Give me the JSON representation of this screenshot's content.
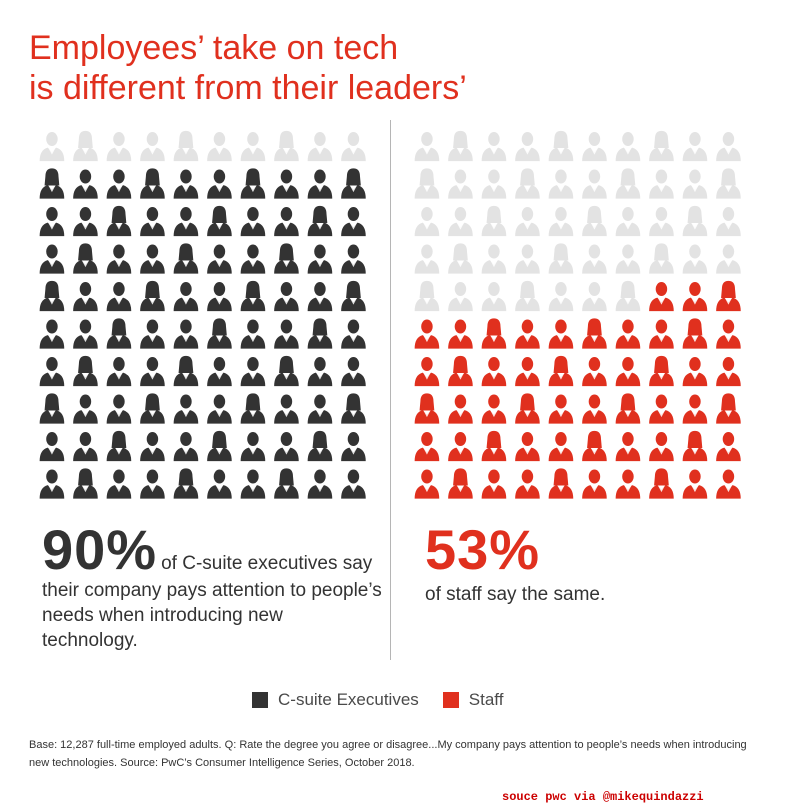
{
  "title_lines": [
    "Employees’ take on tech",
    "is different from their leaders’"
  ],
  "colors": {
    "c_suite": "#333333",
    "staff": "#e0301e",
    "empty": "#e3e3e3",
    "title": "#e0301e"
  },
  "chart_data": [
    {
      "type": "pictogram",
      "series": "C-suite Executives",
      "total": 100,
      "value": 90,
      "unit": "%",
      "icon": "person-icon"
    },
    {
      "type": "pictogram",
      "series": "Staff",
      "total": 100,
      "value": 53,
      "unit": "%",
      "icon": "person-icon"
    }
  ],
  "stats": {
    "c_suite": {
      "value": "90%",
      "text": "of C-suite executives say their company pays attention to people’s needs when introducing new technology."
    },
    "staff": {
      "value": "53%",
      "text": "of staff say the same."
    }
  },
  "legend": {
    "c_suite": "C-suite Executives",
    "staff": "Staff"
  },
  "footnote": "Base: 12,287 full-time employed adults. Q: Rate the degree you agree or disagree...My company pays attention to people’s needs when introducing new technologies. Source: PwC’s Consumer Intelligence Series, October 2018.",
  "credit": "souce pwc via @mikequindazzi"
}
